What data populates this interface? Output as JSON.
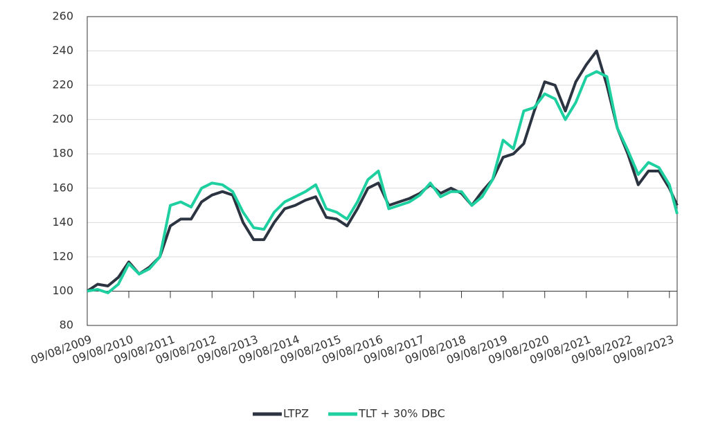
{
  "chart_data": {
    "type": "line",
    "x": [
      "2009-09-08",
      "2009-12-08",
      "2010-03-08",
      "2010-06-08",
      "2010-09-08",
      "2010-12-08",
      "2011-03-08",
      "2011-06-08",
      "2011-09-08",
      "2011-12-08",
      "2012-03-08",
      "2012-06-08",
      "2012-09-08",
      "2012-12-08",
      "2013-03-08",
      "2013-06-08",
      "2013-09-08",
      "2013-12-08",
      "2014-03-08",
      "2014-06-08",
      "2014-09-08",
      "2014-12-08",
      "2015-03-08",
      "2015-06-08",
      "2015-09-08",
      "2015-12-08",
      "2016-03-08",
      "2016-06-08",
      "2016-09-08",
      "2016-12-08",
      "2017-03-08",
      "2017-06-08",
      "2017-09-08",
      "2017-12-08",
      "2018-03-08",
      "2018-06-08",
      "2018-09-08",
      "2018-12-08",
      "2019-03-08",
      "2019-06-08",
      "2019-09-08",
      "2019-12-08",
      "2020-03-08",
      "2020-06-08",
      "2020-09-08",
      "2020-12-08",
      "2021-03-08",
      "2021-06-08",
      "2021-09-08",
      "2021-12-08",
      "2022-03-08",
      "2022-06-08",
      "2022-09-08",
      "2022-12-08",
      "2023-03-08",
      "2023-06-08",
      "2023-09-08",
      "2023-11-15"
    ],
    "series": [
      {
        "name": "LTPZ",
        "color": "#2b3440",
        "values": [
          100,
          104,
          103,
          108,
          117,
          110,
          114,
          120,
          138,
          142,
          142,
          152,
          156,
          158,
          156,
          140,
          130,
          130,
          140,
          148,
          150,
          153,
          155,
          143,
          142,
          138,
          148,
          160,
          163,
          150,
          152,
          154,
          157,
          162,
          157,
          160,
          157,
          150,
          158,
          165,
          178,
          180,
          186,
          205,
          222,
          220,
          205,
          222,
          232,
          240,
          220,
          195,
          180,
          162,
          170,
          170,
          160,
          150
        ]
      },
      {
        "name": "TLT + 30% DBC",
        "color": "#1ecfa0",
        "values": [
          100,
          101,
          99,
          104,
          116,
          110,
          113,
          120,
          150,
          152,
          149,
          160,
          163,
          162,
          158,
          146,
          137,
          136,
          146,
          152,
          155,
          158,
          162,
          148,
          146,
          142,
          152,
          165,
          170,
          148,
          150,
          152,
          156,
          163,
          155,
          158,
          158,
          150,
          155,
          165,
          188,
          183,
          205,
          207,
          215,
          212,
          200,
          210,
          225,
          228,
          225,
          195,
          182,
          168,
          175,
          172,
          162,
          145
        ]
      }
    ],
    "xlim": [
      "2009-09-08",
      "2023-11-15"
    ],
    "xticks": [
      {
        "value": "2009-09-08",
        "label": "09/08/2009"
      },
      {
        "value": "2010-09-08",
        "label": "09/08/2010"
      },
      {
        "value": "2011-09-08",
        "label": "09/08/2011"
      },
      {
        "value": "2012-09-08",
        "label": "09/08/2012"
      },
      {
        "value": "2013-09-08",
        "label": "09/08/2013"
      },
      {
        "value": "2014-09-08",
        "label": "09/08/2014"
      },
      {
        "value": "2015-09-08",
        "label": "09/08/2015"
      },
      {
        "value": "2016-09-08",
        "label": "09/08/2016"
      },
      {
        "value": "2017-09-08",
        "label": "09/08/2017"
      },
      {
        "value": "2018-09-08",
        "label": "09/08/2018"
      },
      {
        "value": "2019-09-08",
        "label": "09/08/2019"
      },
      {
        "value": "2020-09-08",
        "label": "09/08/2020"
      },
      {
        "value": "2021-09-08",
        "label": "09/08/2021"
      },
      {
        "value": "2022-09-08",
        "label": "09/08/2022"
      },
      {
        "value": "2023-09-08",
        "label": "09/08/2023"
      }
    ],
    "ylim": [
      80,
      260
    ],
    "yticks": [
      80,
      100,
      120,
      140,
      160,
      180,
      200,
      220,
      240,
      260
    ],
    "grid": true,
    "legend": "bottom"
  }
}
